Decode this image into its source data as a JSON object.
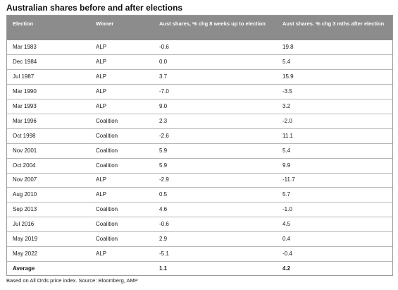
{
  "title": "Australian shares before and after elections",
  "table": {
    "headers": [
      "Election",
      "Winner",
      "Aust shares, % chg  8 weeks up to election",
      "Aust shares. % chg 3 mths after election"
    ],
    "rows": [
      {
        "election": "Mar 1983",
        "winner": "ALP",
        "before": "-0.6",
        "after": "19.8"
      },
      {
        "election": "Dec 1984",
        "winner": "ALP",
        "before": "0.0",
        "after": "5.4"
      },
      {
        "election": "Jul 1987",
        "winner": "ALP",
        "before": "3.7",
        "after": "15.9"
      },
      {
        "election": "Mar 1990",
        "winner": "ALP",
        "before": "-7.0",
        "after": "-3.5"
      },
      {
        "election": "Mar 1993",
        "winner": "ALP",
        "before": "9.0",
        "after": "3.2"
      },
      {
        "election": "Mar 1996",
        "winner": "Coalition",
        "before": "2.3",
        "after": "-2.0"
      },
      {
        "election": "Oct 1998",
        "winner": "Coalition",
        "before": "-2.6",
        "after": "11.1"
      },
      {
        "election": "Nov 2001",
        "winner": "Coalition",
        "before": "5.9",
        "after": "5.4"
      },
      {
        "election": "Oct 2004",
        "winner": "Coalition",
        "before": "5.9",
        "after": "9.9"
      },
      {
        "election": "Nov 2007",
        "winner": "ALP",
        "before": "-2.9",
        "after": "-11.7"
      },
      {
        "election": "Aug 2010",
        "winner": "ALP",
        "before": "0.5",
        "after": "5.7"
      },
      {
        "election": "Sep 2013",
        "winner": "Coalition",
        "before": "4.6",
        "after": "-1.0"
      },
      {
        "election": "Jul 2016",
        "winner": "Coalition",
        "before": "-0.6",
        "after": "4.5"
      },
      {
        "election": "May 2019",
        "winner": "Coalition",
        "before": "2.9",
        "after": "0.4"
      },
      {
        "election": "May 2022",
        "winner": "ALP",
        "before": "-5.1",
        "after": "-0.4"
      }
    ],
    "average": {
      "label": "Average",
      "before": "1.1",
      "after": "4.2"
    }
  },
  "footnote": "Based on All Ords price index. Source: Bloomberg, AMP",
  "colors": {
    "header_bg": "#8c8c8c",
    "header_text": "#ffffff",
    "row_divider": "#b7b7b7"
  }
}
